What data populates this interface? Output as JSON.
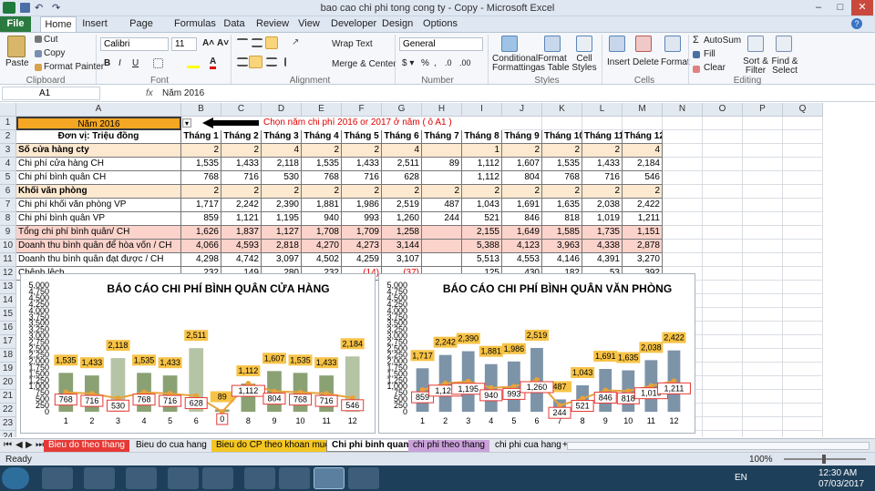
{
  "window": {
    "title": "bao cao chi phi tong cong ty - Copy - Microsoft Excel"
  },
  "ribbon_tabs": [
    "File",
    "Home",
    "Insert",
    "Page Layout",
    "Formulas",
    "Data",
    "Review",
    "View",
    "Developer",
    "Design",
    "Options"
  ],
  "ribbon": {
    "clipboard": {
      "paste": "Paste",
      "cut": "Cut",
      "copy": "Copy",
      "format_painter": "Format Painter",
      "label": "Clipboard"
    },
    "font": {
      "name": "Calibri",
      "size": "11",
      "label": "Font"
    },
    "alignment": {
      "wrap": "Wrap Text",
      "merge": "Merge & Center",
      "label": "Alignment"
    },
    "number": {
      "format": "General",
      "label": "Number"
    },
    "styles": {
      "cond": "Conditional Formatting",
      "table": "Format as Table",
      "cell": "Cell Styles",
      "label": "Styles"
    },
    "cells": {
      "insert": "Insert",
      "delete": "Delete",
      "format": "Format",
      "label": "Cells"
    },
    "editing": {
      "autosum": "AutoSum",
      "fill": "Fill",
      "clear": "Clear",
      "sort": "Sort & Filter",
      "find": "Find & Select",
      "label": "Editing"
    }
  },
  "formula_bar": {
    "name_box": "A1",
    "fx": "fx",
    "content": "Năm 2016"
  },
  "columns": [
    "A",
    "B",
    "C",
    "D",
    "E",
    "F",
    "G",
    "H",
    "I",
    "J",
    "K",
    "L",
    "M",
    "N",
    "O",
    "P",
    "Q"
  ],
  "rows": [
    "1",
    "2",
    "3",
    "4",
    "5",
    "6",
    "7",
    "8",
    "9",
    "10",
    "11",
    "12",
    "13",
    "14",
    "15",
    "16",
    "17",
    "18",
    "19",
    "20",
    "21",
    "22",
    "23",
    "24",
    "25"
  ],
  "sheet": {
    "a1": "Năm 2016",
    "note": "Chọn năm chi phí 2016 or 2017 ở năm ( ô A1 )",
    "header_label": "Đơn vị: Triệu đồng",
    "months": [
      "Tháng 1",
      "Tháng 2",
      "Tháng 3",
      "Tháng 4",
      "Tháng 5",
      "Tháng 6",
      "Tháng 7",
      "Tháng 8",
      "Tháng 9",
      "Tháng 10",
      "Tháng 11",
      "Tháng 12"
    ],
    "data_rows": [
      {
        "label": "Số cửa hàng cty",
        "values": [
          "2",
          "2",
          "4",
          "2",
          "2",
          "4",
          "",
          "1",
          "2",
          "2",
          "2",
          "4"
        ],
        "style": "orange-bold"
      },
      {
        "label": "Chi phí cửa hàng CH",
        "values": [
          "1,535",
          "1,433",
          "2,118",
          "1,535",
          "1,433",
          "2,511",
          "89",
          "1,112",
          "1,607",
          "1,535",
          "1,433",
          "2,184"
        ],
        "style": ""
      },
      {
        "label": "Chi phí bình quân CH",
        "values": [
          "768",
          "716",
          "530",
          "768",
          "716",
          "628",
          "",
          "1,112",
          "804",
          "768",
          "716",
          "546"
        ],
        "style": ""
      },
      {
        "label": "Khối văn phòng",
        "values": [
          "2",
          "2",
          "2",
          "2",
          "2",
          "2",
          "2",
          "2",
          "2",
          "2",
          "2",
          "2"
        ],
        "style": "orange-bold"
      },
      {
        "label": "Chi phí khối văn phòng VP",
        "values": [
          "1,717",
          "2,242",
          "2,390",
          "1,881",
          "1,986",
          "2,519",
          "487",
          "1,043",
          "1,691",
          "1,635",
          "2,038",
          "2,422"
        ],
        "style": ""
      },
      {
        "label": "Chi phí bình quân VP",
        "values": [
          "859",
          "1,121",
          "1,195",
          "940",
          "993",
          "1,260",
          "244",
          "521",
          "846",
          "818",
          "1,019",
          "1,211"
        ],
        "style": ""
      },
      {
        "label": "Tổng chi phí bình quân/ CH",
        "values": [
          "1,626",
          "1,837",
          "1,127",
          "1,708",
          "1,709",
          "1,258",
          "",
          "2,155",
          "1,649",
          "1,585",
          "1,735",
          "1,151"
        ],
        "style": "pink"
      },
      {
        "label": "Doanh thu bình quân để hòa vốn / CH",
        "values": [
          "4,066",
          "4,593",
          "2,818",
          "4,270",
          "4,273",
          "3,144",
          "",
          "5,388",
          "4,123",
          "3,963",
          "4,338",
          "2,878"
        ],
        "style": "pink"
      },
      {
        "label": "Doanh thu bình quân đạt được / CH",
        "values": [
          "4,298",
          "4,742",
          "3,097",
          "4,502",
          "4,259",
          "3,107",
          "",
          "5,513",
          "4,553",
          "4,146",
          "4,391",
          "3,270"
        ],
        "style": ""
      },
      {
        "label": "Chênh lệch",
        "values": [
          "232",
          "149",
          "280",
          "232",
          "(14)",
          "(37)",
          "",
          "125",
          "430",
          "182",
          "53",
          "392"
        ],
        "style": ""
      }
    ]
  },
  "chart_data": [
    {
      "type": "bar",
      "title": "BÁO CÁO CHI PHÍ BÌNH QUÂN CỬA HÀNG",
      "categories": [
        "1",
        "2",
        "3",
        "4",
        "5",
        "6",
        "7",
        "8",
        "9",
        "10",
        "11",
        "12"
      ],
      "yticks": [
        "0",
        "250",
        "500",
        "750",
        "1,000",
        "1,250",
        "1,500",
        "1,750",
        "2,000",
        "2,250",
        "2,500",
        "2,750",
        "3,000",
        "3,250",
        "3,500",
        "3,750",
        "4,000",
        "4,250",
        "4,500",
        "4,750",
        "5,000"
      ],
      "ylim": [
        0,
        5000
      ],
      "series": [
        {
          "type": "bar",
          "values": [
            1535,
            1433,
            2118,
            1535,
            1433,
            2511,
            89,
            1112,
            1607,
            1535,
            1433,
            2184
          ],
          "labels": [
            "1,535",
            "1,433",
            "2,118",
            "1,535",
            "1,433",
            "2,511",
            "89",
            "1,112",
            "1,607",
            "1,535",
            "1,433",
            "2,184"
          ]
        },
        {
          "type": "line",
          "values": [
            768,
            716,
            530,
            768,
            716,
            628,
            0,
            1112,
            804,
            768,
            716,
            546
          ],
          "labels": [
            "768",
            "716",
            "530",
            "768",
            "716",
            "628",
            "0",
            "1,112",
            "804",
            "768",
            "716",
            "546"
          ]
        }
      ],
      "colors": {
        "bar": "#8aa174",
        "bar_hi": "#b5c4a5",
        "line": "#e8a33a"
      }
    },
    {
      "type": "bar",
      "title": "BÁO CÁO CHI PHÍ BÌNH QUÂN VĂN PHÒNG",
      "categories": [
        "1",
        "2",
        "3",
        "4",
        "5",
        "6",
        "7",
        "8",
        "9",
        "10",
        "11",
        "12"
      ],
      "yticks": [
        "0",
        "250",
        "500",
        "750",
        "1,000",
        "1,250",
        "1,500",
        "1,750",
        "2,000",
        "2,250",
        "2,500",
        "2,750",
        "3,000",
        "3,250",
        "3,500",
        "3,750",
        "4,000",
        "4,250",
        "4,500",
        "4,750",
        "5,000"
      ],
      "ylim": [
        0,
        5000
      ],
      "series": [
        {
          "type": "bar",
          "values": [
            1717,
            2242,
            2390,
            1881,
            1986,
            2519,
            487,
            1043,
            1691,
            1635,
            2038,
            2422
          ],
          "labels": [
            "1,717",
            "2,242",
            "2,390",
            "1,881",
            "1,986",
            "2,519",
            "487",
            "1,043",
            "1,691",
            "1,635",
            "2,038",
            "2,422"
          ]
        },
        {
          "type": "line",
          "values": [
            859,
            1121,
            1195,
            940,
            993,
            1260,
            244,
            521,
            846,
            818,
            1019,
            1211
          ],
          "labels": [
            "859",
            "1,121",
            "1,195",
            "940",
            "993",
            "1,260",
            "244",
            "521",
            "846",
            "818",
            "1,019",
            "1,211"
          ]
        }
      ],
      "colors": {
        "bar": "#7d93a8",
        "line": "#e8a33a"
      }
    }
  ],
  "sheet_tabs": [
    {
      "label": "Bieu do theo thang",
      "color": "#e53935",
      "text": "#fff"
    },
    {
      "label": "Bieu do cua hang",
      "color": "#e4e8ee",
      "text": "#000"
    },
    {
      "label": "Bieu do CP theo khoan muc",
      "color": "#f3c623",
      "text": "#000"
    },
    {
      "label": "Chi phi binh quan",
      "color": "#ffffff",
      "text": "#000"
    },
    {
      "label": "chi phi theo thang",
      "color": "#c9a0d9",
      "text": "#000"
    },
    {
      "label": "chi phi cua hang",
      "color": "#e4e8ee",
      "text": "#000"
    }
  ],
  "status": {
    "ready": "Ready",
    "zoom": "100%"
  },
  "taskbar": {
    "lang": "EN",
    "time": "12:30 AM",
    "date": "07/03/2017"
  }
}
